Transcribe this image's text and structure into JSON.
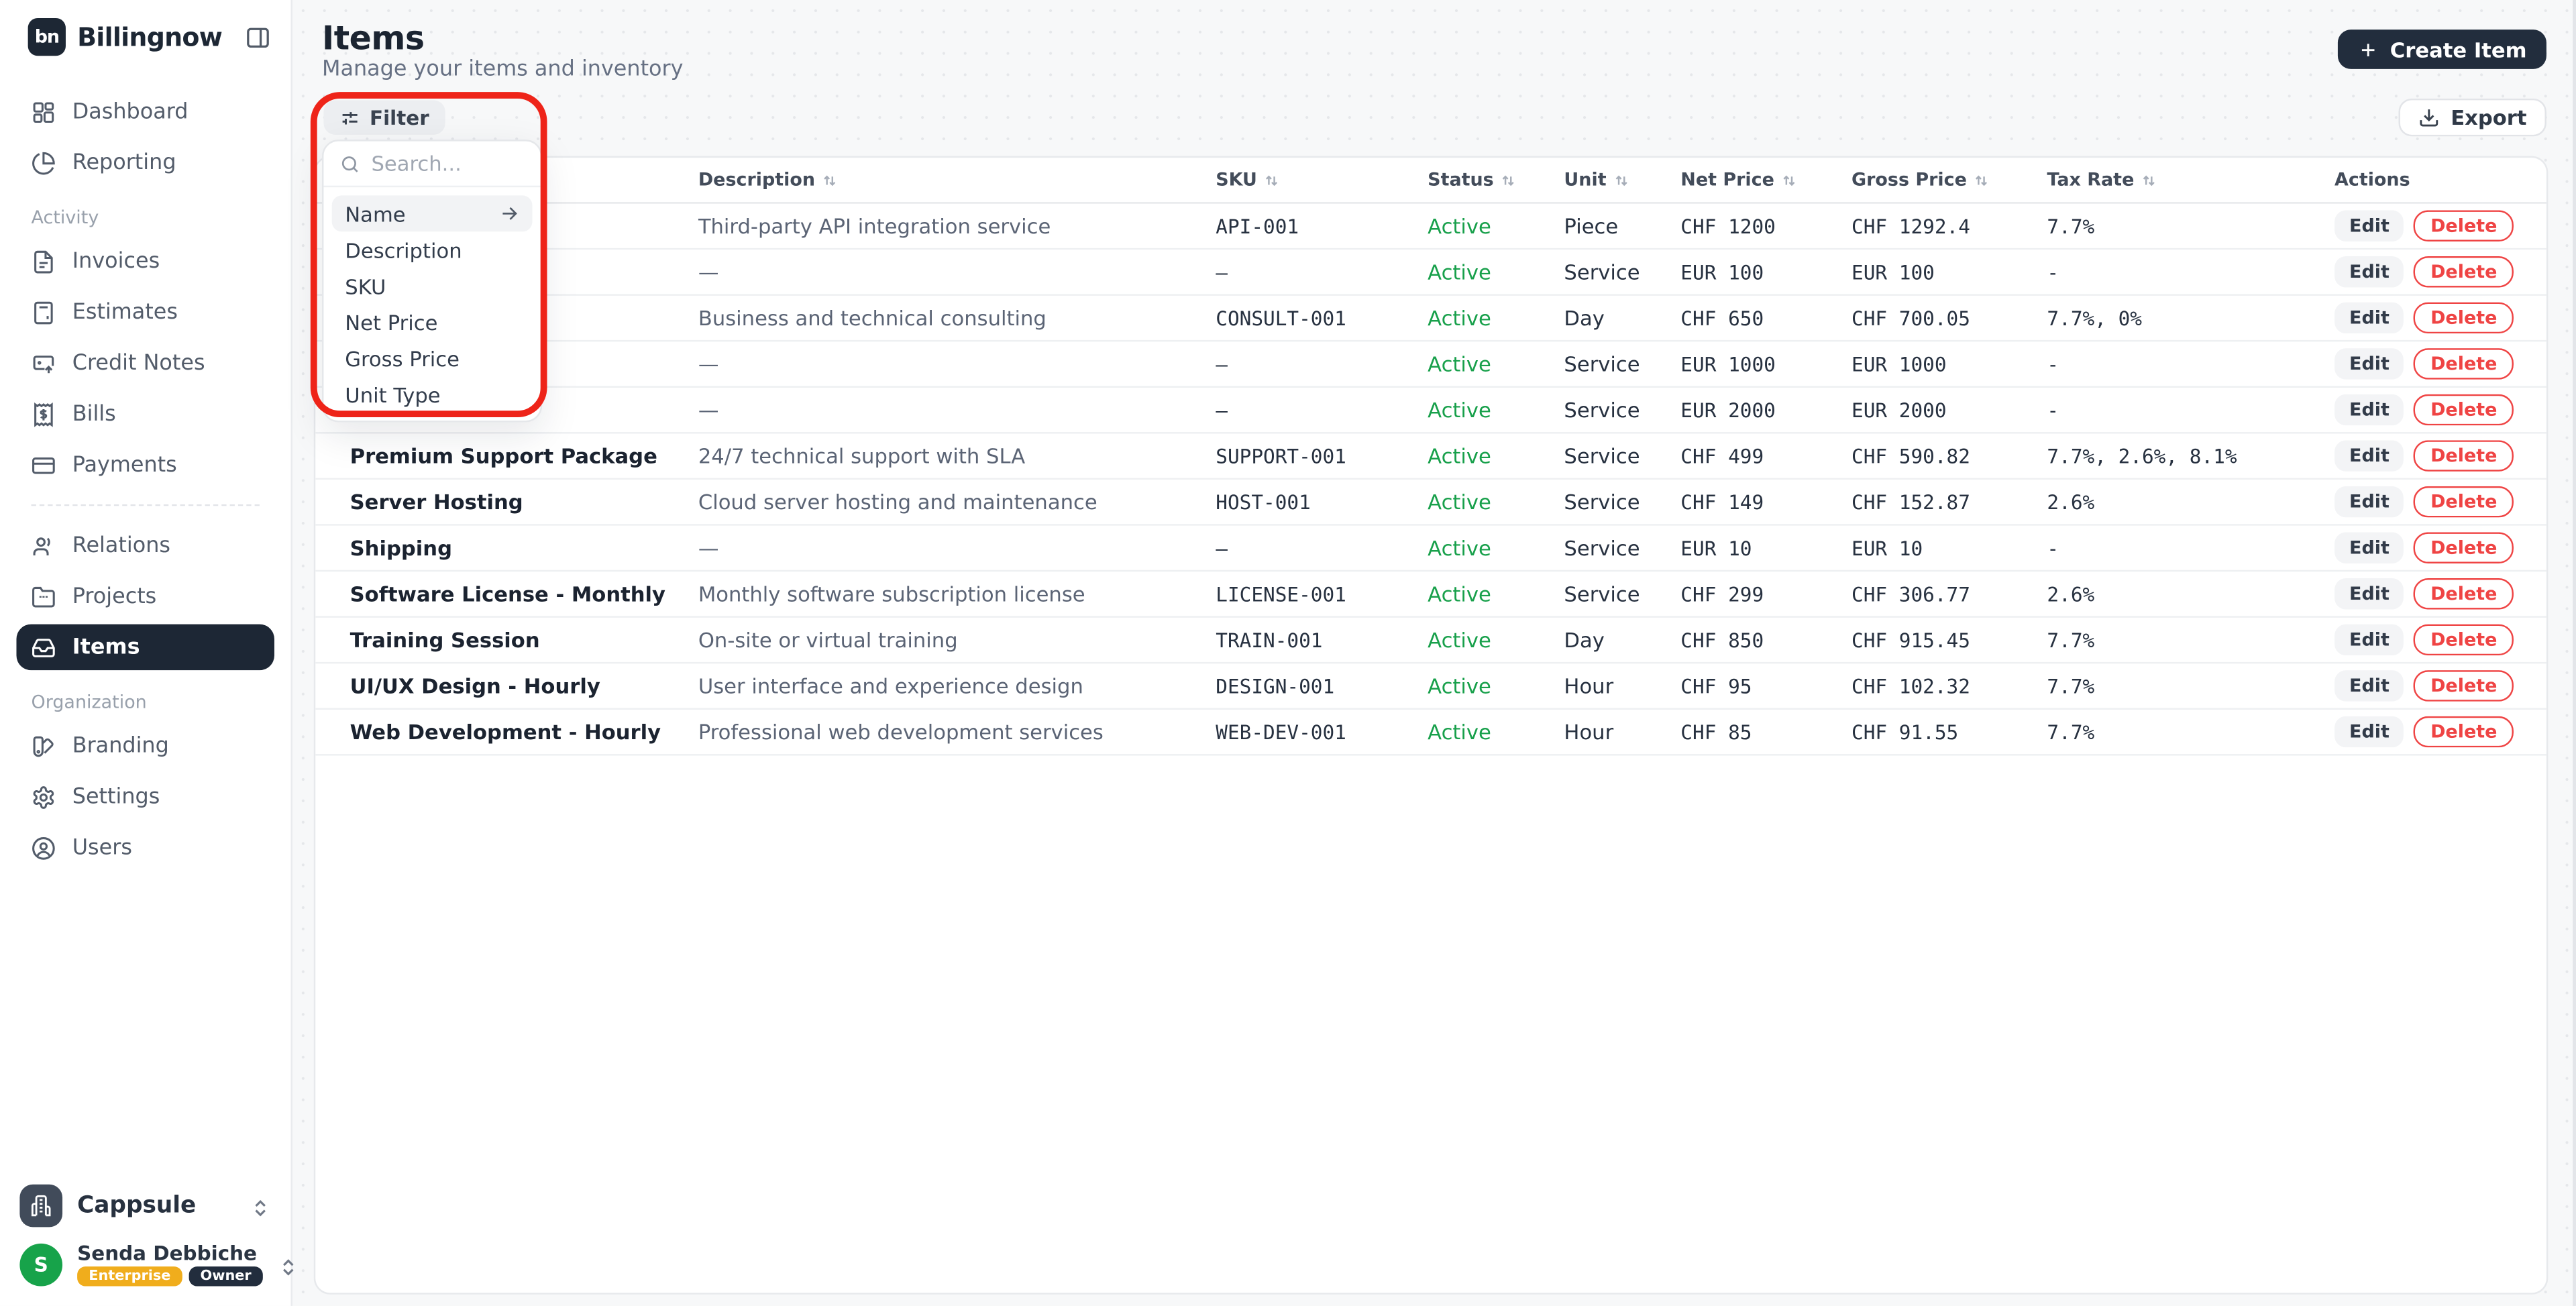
{
  "brand": {
    "logo_text": "bn",
    "name": "Billingnow"
  },
  "sidebar": {
    "dashboard": "Dashboard",
    "reporting": "Reporting",
    "activity_label": "Activity",
    "invoices": "Invoices",
    "estimates": "Estimates",
    "credit_notes": "Credit Notes",
    "bills": "Bills",
    "payments": "Payments",
    "relations": "Relations",
    "projects": "Projects",
    "items": "Items",
    "organization_label": "Organization",
    "branding": "Branding",
    "settings": "Settings",
    "users": "Users",
    "workspace_name": "Cappsule",
    "user": {
      "avatar_initial": "S",
      "name": "Senda Debbiche",
      "plan_badge": "Enterprise",
      "role_badge": "Owner"
    }
  },
  "header": {
    "title": "Items",
    "subtitle": "Manage your items and inventory",
    "create_button": "Create Item"
  },
  "toolbar": {
    "filter_button": "Filter",
    "export_button": "Export"
  },
  "filter_dropdown": {
    "search_placeholder": "Search...",
    "highlighted": "Name",
    "options": [
      "Name",
      "Description",
      "SKU",
      "Net Price",
      "Gross Price",
      "Unit Type"
    ]
  },
  "table": {
    "headers": {
      "name": "",
      "description": "Description",
      "sku": "SKU",
      "status": "Status",
      "unit": "Unit",
      "net_price": "Net Price",
      "gross_price": "Gross Price",
      "tax_rate": "Tax Rate",
      "actions": "Actions"
    },
    "row_actions": {
      "edit": "Edit",
      "delete": "Delete"
    },
    "rows": [
      {
        "name": "",
        "description": "Third-party API integration service",
        "sku": "API-001",
        "status": "Active",
        "unit": "Piece",
        "net_price": "CHF 1200",
        "gross_price": "CHF 1292.4",
        "tax_rate": "7.7%"
      },
      {
        "name": "",
        "description": "—",
        "sku": "–",
        "status": "Active",
        "unit": "Service",
        "net_price": "EUR 100",
        "gross_price": "EUR 100",
        "tax_rate": "-"
      },
      {
        "name": "",
        "description": "Business and technical consulting",
        "sku": "CONSULT-001",
        "status": "Active",
        "unit": "Day",
        "net_price": "CHF 650",
        "gross_price": "CHF 700.05",
        "tax_rate": "7.7%, 0%"
      },
      {
        "name": "",
        "description": "—",
        "sku": "–",
        "status": "Active",
        "unit": "Service",
        "net_price": "EUR 1000",
        "gross_price": "EUR 1000",
        "tax_rate": "-"
      },
      {
        "name": "",
        "description": "—",
        "sku": "–",
        "status": "Active",
        "unit": "Service",
        "net_price": "EUR 2000",
        "gross_price": "EUR 2000",
        "tax_rate": "-"
      },
      {
        "name": "Premium Support Package",
        "description": "24/7 technical support with SLA",
        "sku": "SUPPORT-001",
        "status": "Active",
        "unit": "Service",
        "net_price": "CHF 499",
        "gross_price": "CHF 590.82",
        "tax_rate": "7.7%, 2.6%, 8.1%"
      },
      {
        "name": "Server Hosting",
        "description": "Cloud server hosting and maintenance",
        "sku": "HOST-001",
        "status": "Active",
        "unit": "Service",
        "net_price": "CHF 149",
        "gross_price": "CHF 152.87",
        "tax_rate": "2.6%"
      },
      {
        "name": "Shipping",
        "description": "—",
        "sku": "–",
        "status": "Active",
        "unit": "Service",
        "net_price": "EUR 10",
        "gross_price": "EUR 10",
        "tax_rate": "-"
      },
      {
        "name": "Software License - Monthly",
        "description": "Monthly software subscription license",
        "sku": "LICENSE-001",
        "status": "Active",
        "unit": "Service",
        "net_price": "CHF 299",
        "gross_price": "CHF 306.77",
        "tax_rate": "2.6%"
      },
      {
        "name": "Training Session",
        "description": "On-site or virtual training",
        "sku": "TRAIN-001",
        "status": "Active",
        "unit": "Day",
        "net_price": "CHF 850",
        "gross_price": "CHF 915.45",
        "tax_rate": "7.7%"
      },
      {
        "name": "UI/UX Design - Hourly",
        "description": "User interface and experience design",
        "sku": "DESIGN-001",
        "status": "Active",
        "unit": "Hour",
        "net_price": "CHF 95",
        "gross_price": "CHF 102.32",
        "tax_rate": "7.7%"
      },
      {
        "name": "Web Development - Hourly",
        "description": "Professional web development services",
        "sku": "WEB-DEV-001",
        "status": "Active",
        "unit": "Hour",
        "net_price": "CHF 85",
        "gross_price": "CHF 91.55",
        "tax_rate": "7.7%"
      }
    ]
  },
  "colors": {
    "accent_dark": "#222d3d",
    "active_green": "#18a04b",
    "delete_red": "#ef4444",
    "annotation_red": "#ee2419",
    "badge_amber": "#f0ad1c",
    "avatar_green": "#17a34a"
  }
}
